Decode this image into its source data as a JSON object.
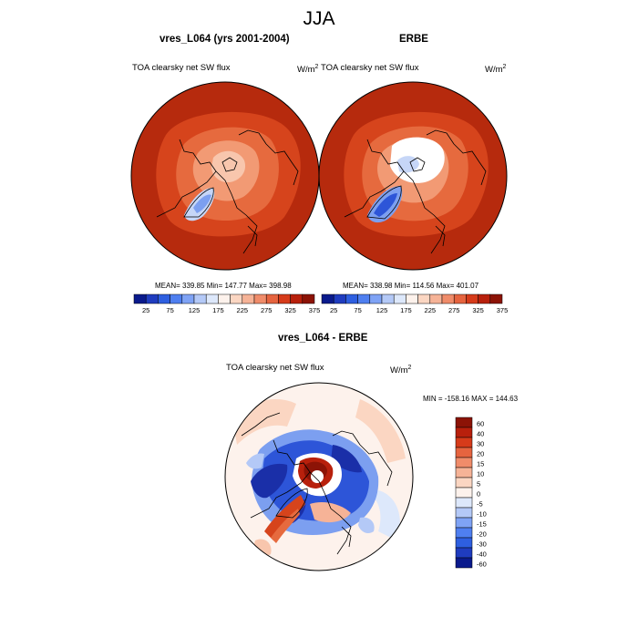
{
  "figure": {
    "title": "JJA"
  },
  "panels": [
    {
      "title": "vres_L064 (yrs 2001-2004)",
      "variable": "TOA clearsky net SW flux",
      "units_base": "W/m",
      "units_exp": "2",
      "stats": "MEAN= 339.85  Min= 147.77  Max= 398.98"
    },
    {
      "title": "ERBE",
      "variable": "TOA clearsky net SW flux",
      "units_base": "W/m",
      "units_exp": "2",
      "stats": "MEAN= 338.98  Min= 114.56  Max= 401.07"
    },
    {
      "title": "vres_L064 - ERBE",
      "variable": "TOA clearsky net SW flux",
      "units_base": "W/m",
      "units_exp": "2",
      "stats": "MIN = -158.16 MAX = 144.63"
    }
  ],
  "colorbar_abs": {
    "colors": [
      "#0a1a8c",
      "#1f3cbf",
      "#2e5fe0",
      "#4f7ff0",
      "#7fa3f5",
      "#b4c9f7",
      "#dde8fb",
      "#fdf2ec",
      "#fbd6c2",
      "#f6b397",
      "#f08c6a",
      "#e6643f",
      "#d63b1a",
      "#b8200c",
      "#8c1306"
    ],
    "tick_labels": [
      "25",
      "75",
      "125",
      "175",
      "225",
      "275",
      "325",
      "375"
    ]
  },
  "colorbar_diff": {
    "colors_top_to_bottom": [
      "#8c1306",
      "#b8200c",
      "#d63b1a",
      "#e6643f",
      "#f08c6a",
      "#f6b397",
      "#fbd6c2",
      "#fdf2ec",
      "#dde8fb",
      "#b4c9f7",
      "#7fa3f5",
      "#4f7ff0",
      "#2e5fe0",
      "#1f3cbf",
      "#0a1a8c"
    ],
    "tick_labels": [
      "60",
      "40",
      "30",
      "20",
      "15",
      "10",
      "5",
      "0",
      "-5",
      "-10",
      "-15",
      "-20",
      "-30",
      "-40",
      "-60"
    ]
  },
  "map_colors": {
    "dark": "#b62a0d",
    "mid": "#d6441c",
    "orange": "#e66a3e",
    "light_orange": "#f29a74",
    "pale": "#f8c6ad",
    "white": "#ffffff",
    "pale_blue": "#c6d6f7",
    "blue": "#7c9ff0",
    "deep_blue": "#2d55d8",
    "navy": "#1a2fa8",
    "coast": "#000000"
  }
}
